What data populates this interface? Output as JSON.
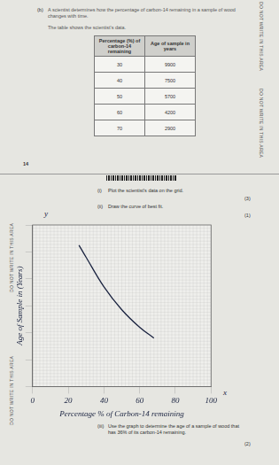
{
  "margin_text": "DO NOT WRITE IN THIS AREA",
  "page_number": "14",
  "part_b": {
    "label": "(b)",
    "text": "A scientist determines how the percentage of carbon-14 remaining in a sample of wood changes with time.",
    "table_intro": "The table shows the scientist's data."
  },
  "table": {
    "header": [
      "Percentage (%) of carbon-14 remaining",
      "Age of sample in years"
    ],
    "rows": [
      [
        "30",
        "9900"
      ],
      [
        "40",
        "7500"
      ],
      [
        "50",
        "5700"
      ],
      [
        "60",
        "4200"
      ],
      [
        "70",
        "2900"
      ]
    ]
  },
  "questions": [
    {
      "label": "(i)",
      "text": "Plot the scientist's data on the grid.",
      "marks": "(3)"
    },
    {
      "label": "(ii)",
      "text": "Draw the curve of best fit.",
      "marks": "(1)"
    },
    {
      "label": "(iii)",
      "text": "Use the graph to determine the age of a sample of wood that has 36% of its carbon-14 remaining.",
      "marks": "(2)"
    }
  ],
  "axis_letters": {
    "y": "y",
    "x": "x"
  },
  "chart_data": {
    "type": "line",
    "x_label": "Percentage % of Carbon-14 remaining",
    "y_label": "Age of Sample in (Years)",
    "x": [
      26,
      30,
      40,
      50,
      60,
      68
    ],
    "values": [
      10500,
      9600,
      7400,
      5700,
      4400,
      3600
    ],
    "color": "#1a2340",
    "xlim": [
      0,
      100
    ],
    "xticks": [
      0,
      20,
      40,
      60,
      80,
      100
    ],
    "ylim": [
      0,
      12000
    ],
    "yticks": [
      0,
      2000,
      4000,
      6000,
      8000,
      10000,
      12000
    ],
    "grid": true,
    "tick_labels": "x"
  }
}
